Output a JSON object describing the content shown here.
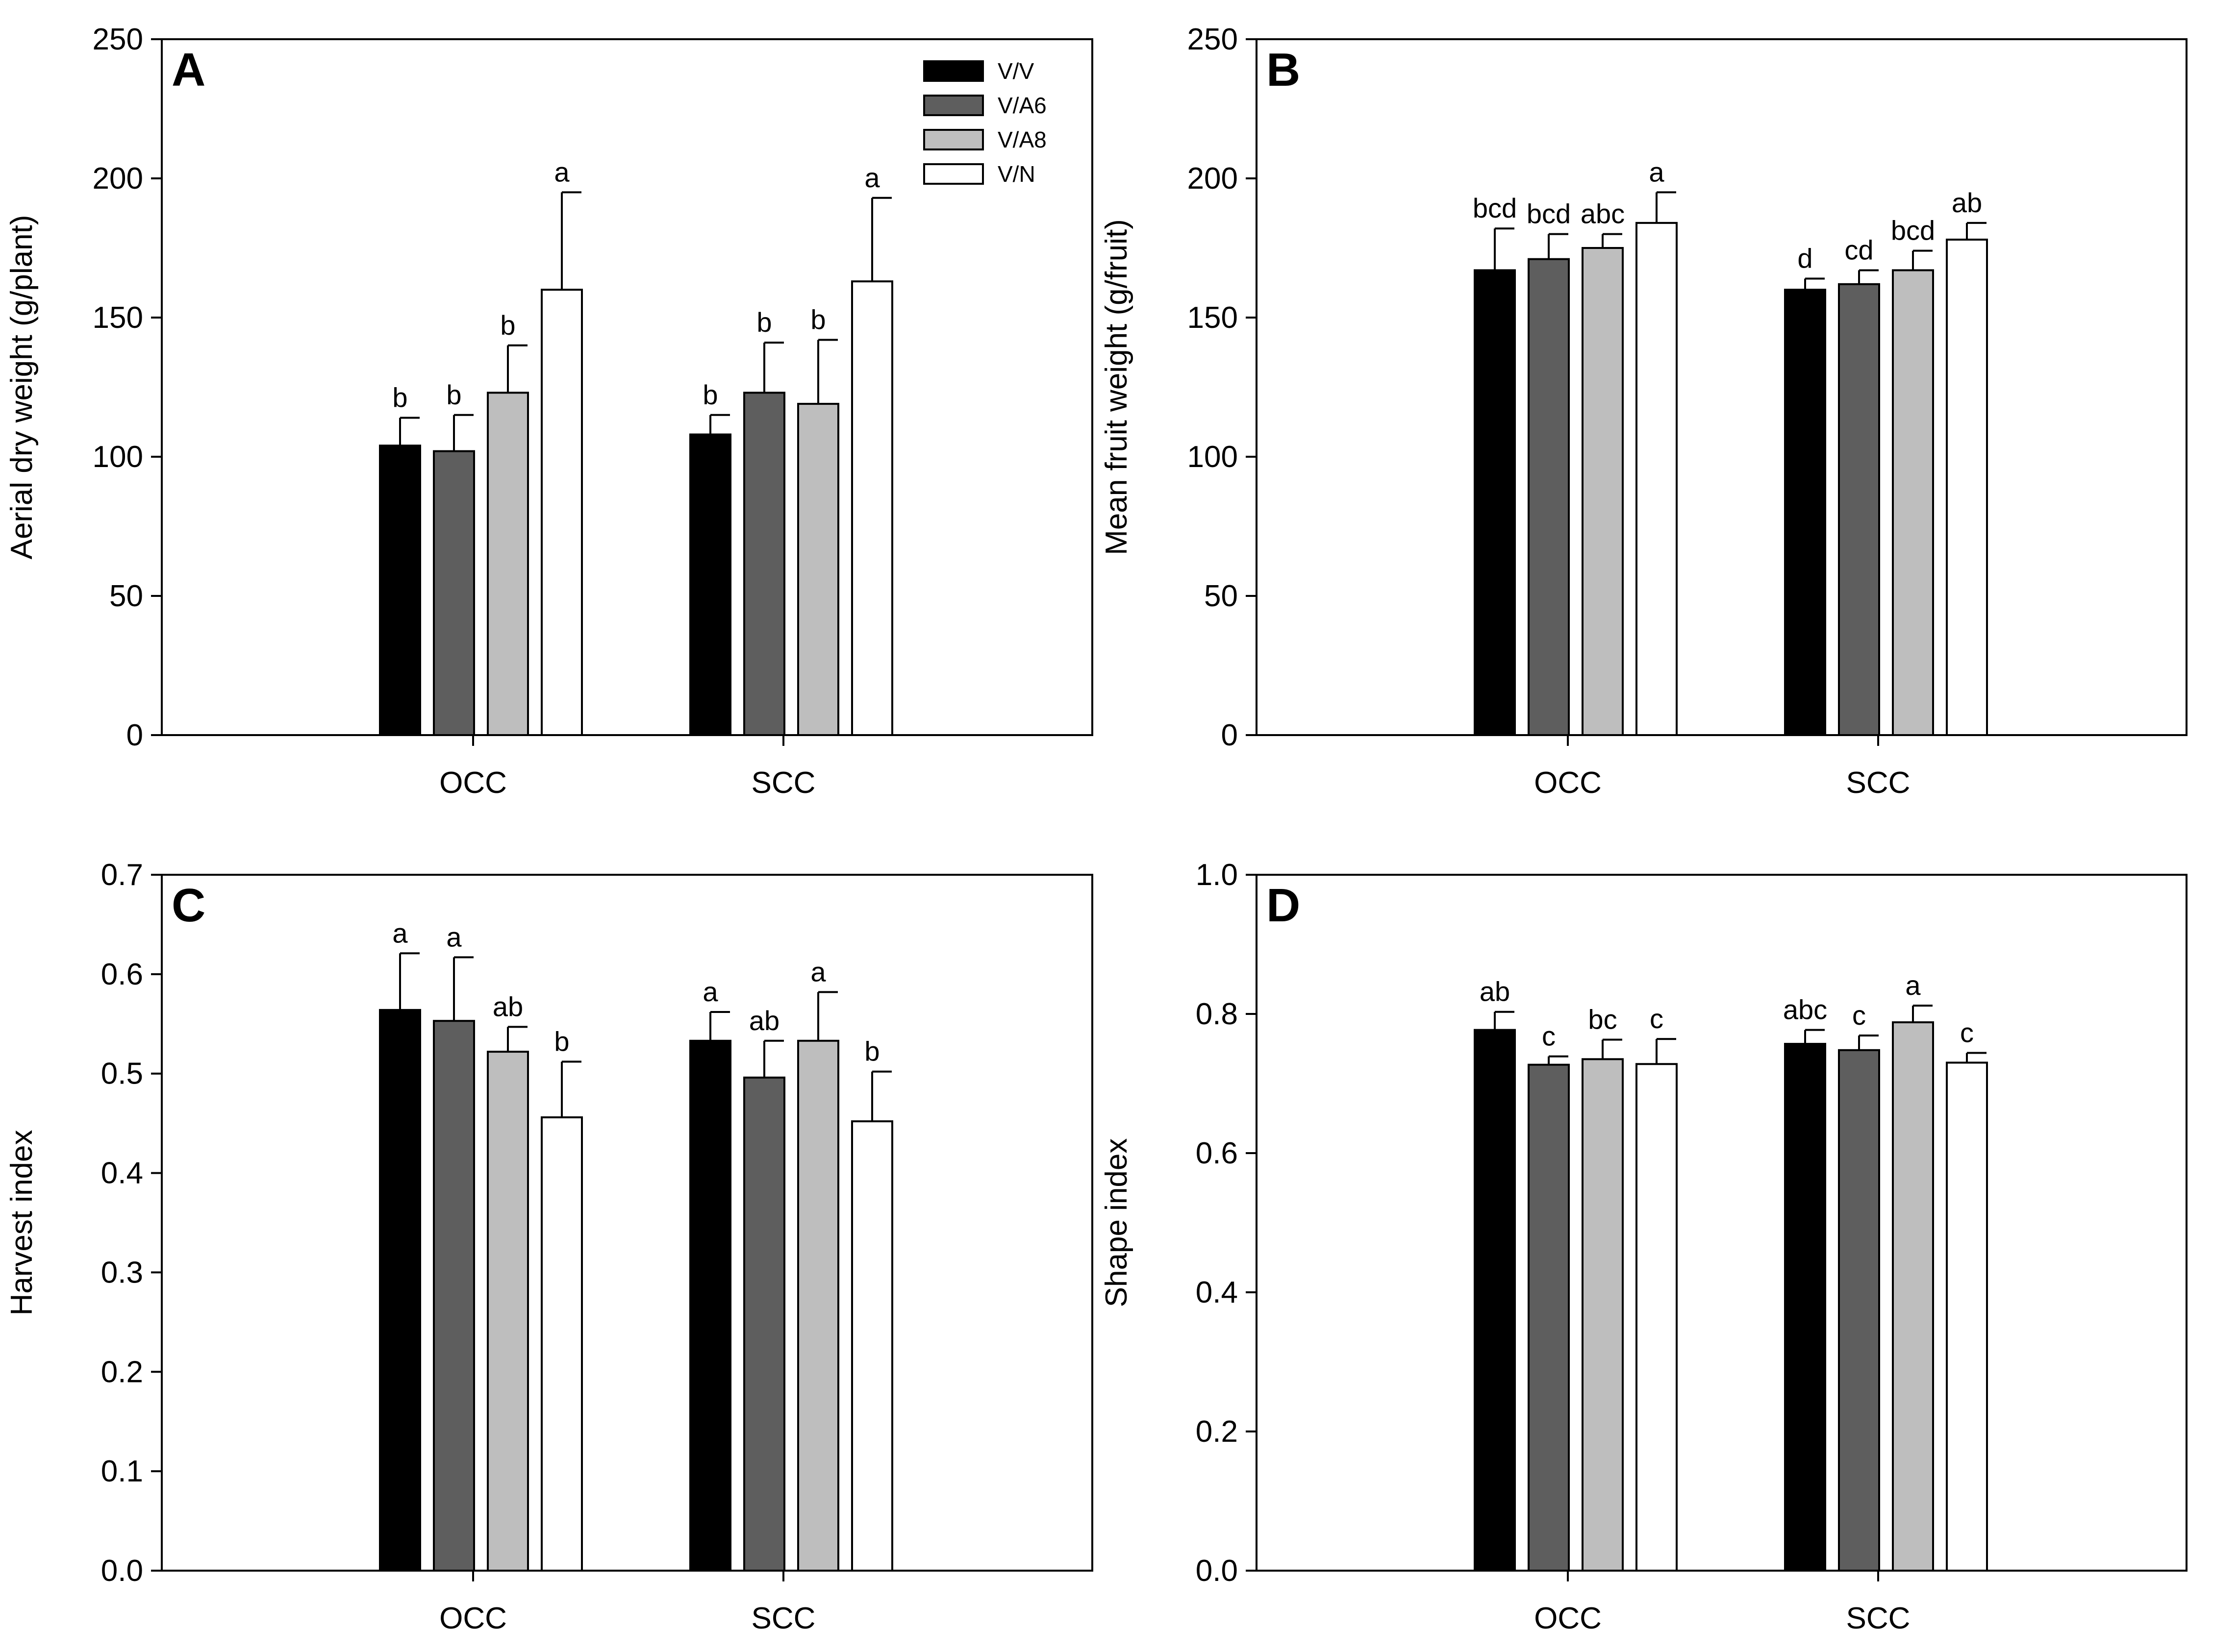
{
  "figure": {
    "legend": [
      {
        "label": "V/V",
        "color": "#000000"
      },
      {
        "label": "V/A6",
        "color": "#5e5e5e"
      },
      {
        "label": "V/A8",
        "color": "#bebebe"
      },
      {
        "label": "V/N",
        "color": "#ffffff"
      }
    ]
  },
  "chart_data": [
    {
      "panel": "A",
      "type": "bar",
      "ylabel": "Aerial dry weight (g/plant)",
      "xlabel": "",
      "ylim": [
        0,
        250
      ],
      "yticks": [
        0,
        50,
        100,
        150,
        200,
        250
      ],
      "ytick_labels": [
        "0",
        "50",
        "100",
        "150",
        "200",
        "250"
      ],
      "categories": [
        "OCC",
        "SCC"
      ],
      "show_legend": true,
      "series": [
        {
          "name": "V/V",
          "values": [
            104,
            108
          ],
          "errors": [
            10,
            7
          ],
          "letters": [
            "b",
            "b"
          ]
        },
        {
          "name": "V/A6",
          "values": [
            102,
            123
          ],
          "errors": [
            13,
            18
          ],
          "letters": [
            "b",
            "b"
          ]
        },
        {
          "name": "V/A8",
          "values": [
            123,
            119
          ],
          "errors": [
            17,
            23
          ],
          "letters": [
            "b",
            "b"
          ]
        },
        {
          "name": "V/N",
          "values": [
            160,
            163
          ],
          "errors": [
            35,
            30
          ],
          "letters": [
            "a",
            "a"
          ]
        }
      ]
    },
    {
      "panel": "B",
      "type": "bar",
      "ylabel": "Mean fruit weight (g/fruit)",
      "xlabel": "",
      "ylim": [
        0,
        250
      ],
      "yticks": [
        0,
        50,
        100,
        150,
        200,
        250
      ],
      "ytick_labels": [
        "0",
        "50",
        "100",
        "150",
        "200",
        "250"
      ],
      "categories": [
        "OCC",
        "SCC"
      ],
      "show_legend": false,
      "series": [
        {
          "name": "V/V",
          "values": [
            167,
            160
          ],
          "errors": [
            15,
            4
          ],
          "letters": [
            "bcd",
            "d"
          ]
        },
        {
          "name": "V/A6",
          "values": [
            171,
            162
          ],
          "errors": [
            9,
            5
          ],
          "letters": [
            "bcd",
            "cd"
          ]
        },
        {
          "name": "V/A8",
          "values": [
            175,
            167
          ],
          "errors": [
            5,
            7
          ],
          "letters": [
            "abc",
            "bcd"
          ]
        },
        {
          "name": "V/N",
          "values": [
            184,
            178
          ],
          "errors": [
            11,
            6
          ],
          "letters": [
            "a",
            "ab"
          ]
        }
      ]
    },
    {
      "panel": "C",
      "type": "bar",
      "ylabel": "Harvest index",
      "xlabel": "",
      "ylim": [
        0,
        0.7
      ],
      "yticks": [
        0,
        0.1,
        0.2,
        0.3,
        0.4,
        0.5,
        0.6,
        0.7
      ],
      "ytick_labels": [
        "0.0",
        "0.1",
        "0.2",
        "0.3",
        "0.4",
        "0.5",
        "0.6",
        "0.7"
      ],
      "categories": [
        "OCC",
        "SCC"
      ],
      "show_legend": false,
      "series": [
        {
          "name": "V/V",
          "values": [
            0.564,
            0.533
          ],
          "errors": [
            0.057,
            0.029
          ],
          "letters": [
            "a",
            "a"
          ]
        },
        {
          "name": "V/A6",
          "values": [
            0.553,
            0.496
          ],
          "errors": [
            0.064,
            0.037
          ],
          "letters": [
            "a",
            "ab"
          ]
        },
        {
          "name": "V/A8",
          "values": [
            0.522,
            0.533
          ],
          "errors": [
            0.025,
            0.049
          ],
          "letters": [
            "ab",
            "a"
          ]
        },
        {
          "name": "V/N",
          "values": [
            0.456,
            0.452
          ],
          "errors": [
            0.056,
            0.05
          ],
          "letters": [
            "b",
            "b"
          ]
        }
      ]
    },
    {
      "panel": "D",
      "type": "bar",
      "ylabel": "Shape index",
      "xlabel": "",
      "ylim": [
        0,
        1.0
      ],
      "yticks": [
        0,
        0.2,
        0.4,
        0.6,
        0.8,
        1.0
      ],
      "ytick_labels": [
        "0.0",
        "0.2",
        "0.4",
        "0.6",
        "0.8",
        "1.0"
      ],
      "categories": [
        "OCC",
        "SCC"
      ],
      "show_legend": false,
      "series": [
        {
          "name": "V/V",
          "values": [
            0.777,
            0.757
          ],
          "errors": [
            0.026,
            0.02
          ],
          "letters": [
            "ab",
            "abc"
          ]
        },
        {
          "name": "V/A6",
          "values": [
            0.727,
            0.748
          ],
          "errors": [
            0.012,
            0.021
          ],
          "letters": [
            "c",
            "c"
          ]
        },
        {
          "name": "V/A8",
          "values": [
            0.735,
            0.788
          ],
          "errors": [
            0.028,
            0.024
          ],
          "letters": [
            "bc",
            "a"
          ]
        },
        {
          "name": "V/N",
          "values": [
            0.728,
            0.73
          ],
          "errors": [
            0.036,
            0.014
          ],
          "letters": [
            "c",
            "c"
          ]
        }
      ]
    }
  ]
}
